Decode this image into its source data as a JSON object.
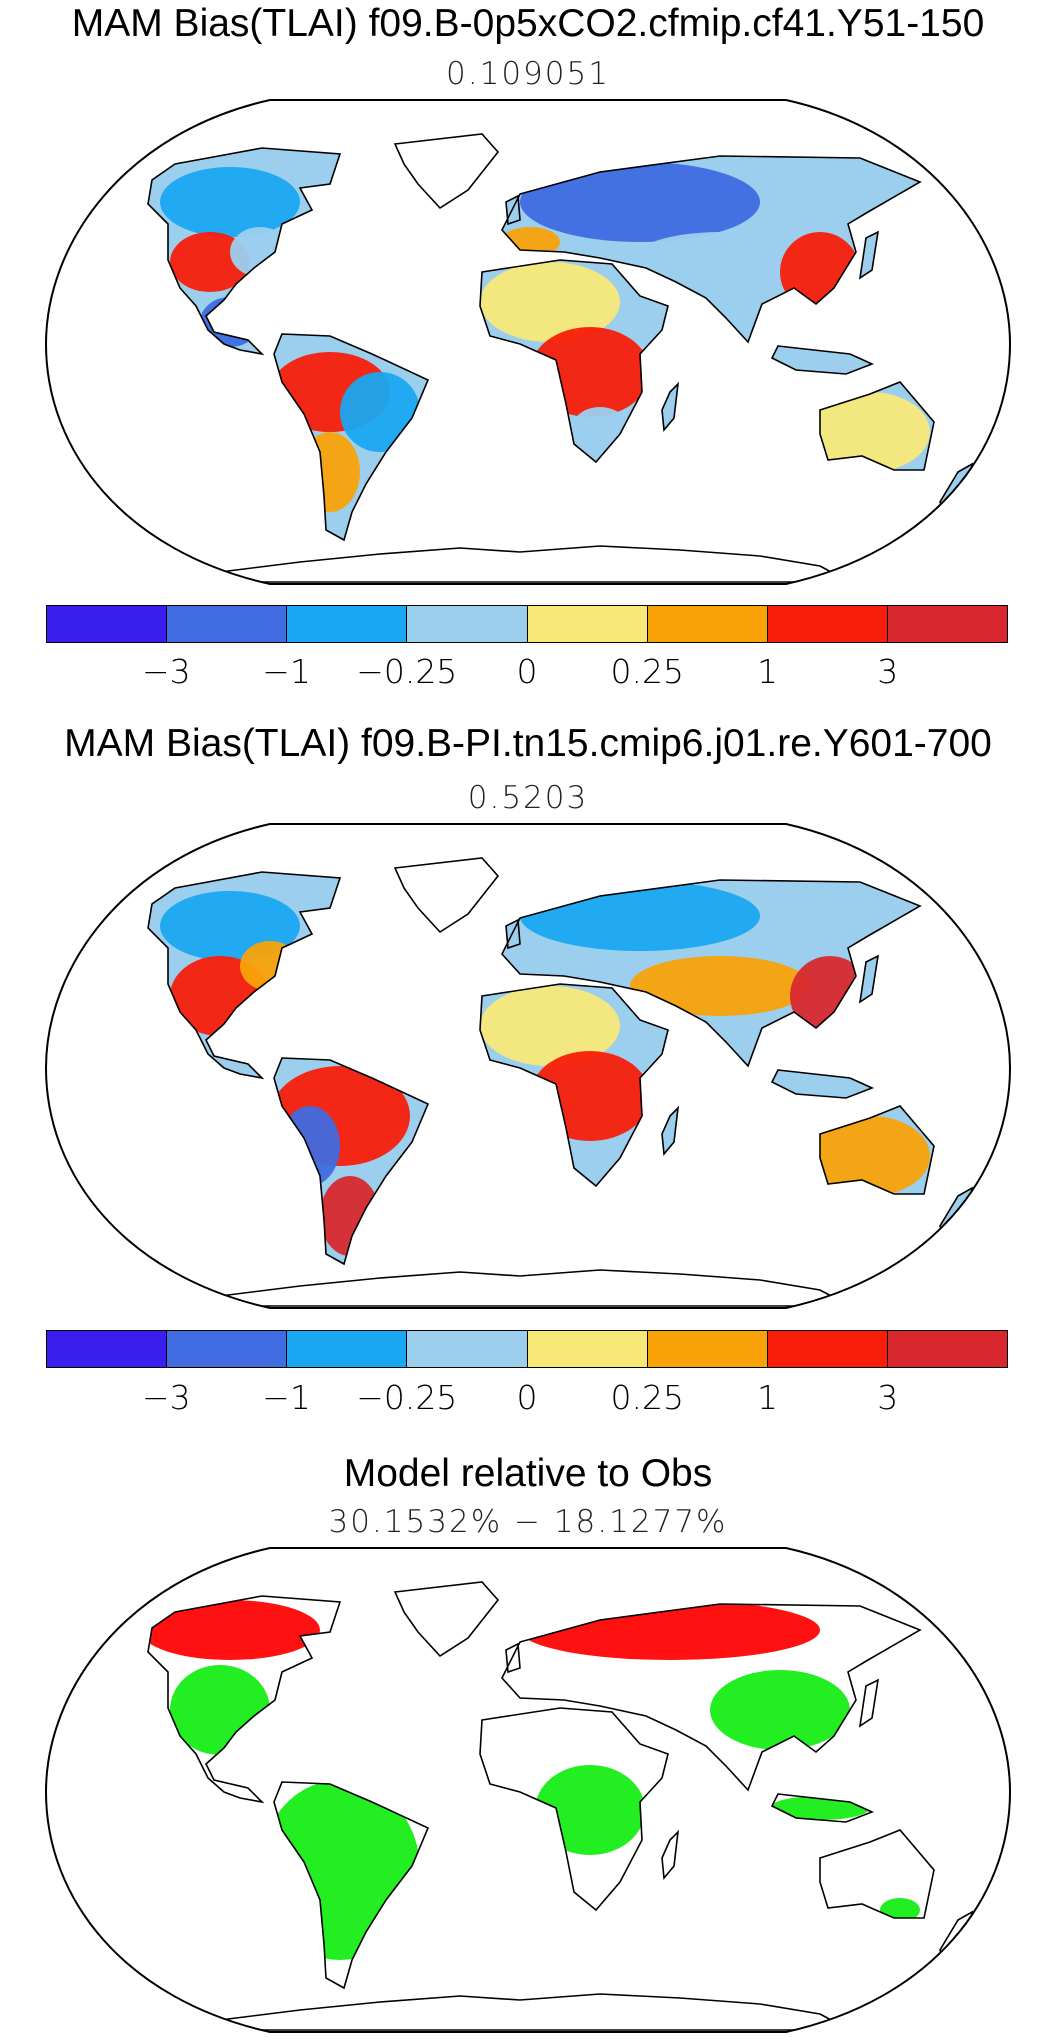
{
  "panels": [
    {
      "title": "MAM Bias(TLAI) f09.B-0p5xCO2.cfmip.cf41.Y51-150",
      "subtitle": "0.109051",
      "has_colorbar": true
    },
    {
      "title": "MAM Bias(TLAI) f09.B-PI.tn15.cmip6.j01.re.Y601-700",
      "subtitle": "0.5203",
      "has_colorbar": true
    },
    {
      "title": "Model relative to Obs",
      "subtitle": "30.1532% − 18.1277%",
      "has_colorbar": false
    }
  ],
  "colorbar": {
    "colors": [
      "#3a1ef0",
      "#3f6ce0",
      "#1aa6f0",
      "#9ccfee",
      "#f8e878",
      "#f8a208",
      "#f81e0a",
      "#d8282e"
    ],
    "tick_labels": [
      "−3",
      "−1",
      "−0.25",
      "0",
      "0.25",
      "1",
      "3"
    ]
  },
  "map_colors": {
    "land_outline": "#000000",
    "ocean": "#ffffff",
    "model_relative_green": "#22ee22",
    "model_relative_red": "#ff1111"
  }
}
